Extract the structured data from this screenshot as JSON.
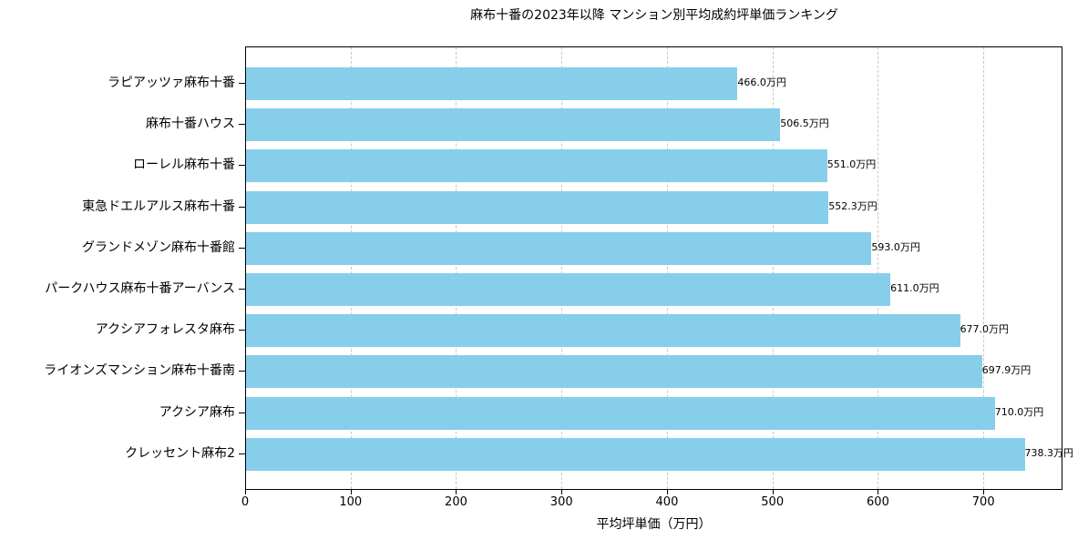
{
  "chart_data": {
    "type": "bar",
    "orientation": "horizontal",
    "title": "麻布十番の2023年以降 マンション別平均成約坪単価ランキング",
    "xlabel": "平均坪単価（万円）",
    "ylabel": "",
    "xlim": [
      0,
      775
    ],
    "xticks": [
      0,
      100,
      200,
      300,
      400,
      500,
      600,
      700
    ],
    "grid": {
      "x": true,
      "y": false,
      "style": "dashed"
    },
    "bar_color": "#87CEEB",
    "categories": [
      "ラピアッツァ麻布十番",
      "麻布十番ハウス",
      "ローレル麻布十番",
      "東急ドエルアルス麻布十番",
      "グランドメゾン麻布十番館",
      "パークハウス麻布十番アーバンス",
      "アクシアフォレスタ麻布",
      "ライオンズマンション麻布十番南",
      "アクシア麻布",
      "クレッセント麻布2"
    ],
    "values": [
      466.0,
      506.5,
      551.0,
      552.3,
      593.0,
      611.0,
      677.0,
      697.9,
      710.0,
      738.3
    ],
    "labels": [
      "466.0万円",
      "506.5万円",
      "551.0万円",
      "552.3万円",
      "593.0万円",
      "611.0万円",
      "677.0万円",
      "697.9万円",
      "710.0万円",
      "738.3万円"
    ]
  }
}
